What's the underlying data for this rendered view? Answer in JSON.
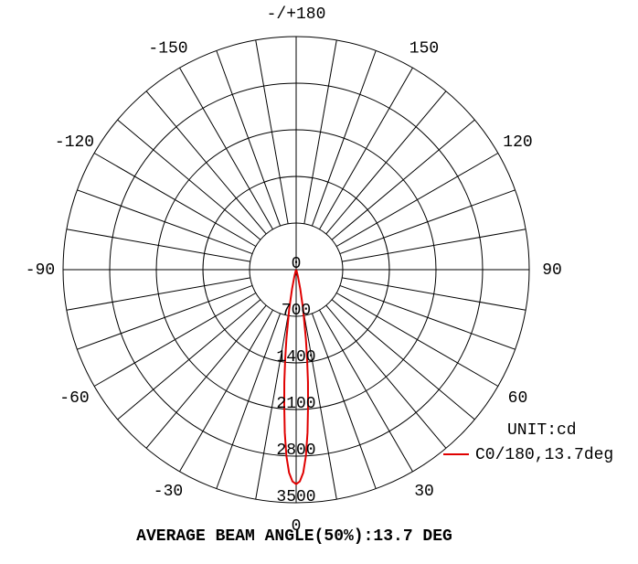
{
  "chart_data": {
    "type": "polar",
    "unit": "UNIT:cd",
    "footer": "AVERAGE BEAM ANGLE(50%):13.7 DEG",
    "rlim": [
      0,
      3500
    ],
    "rticks": [
      0,
      700,
      1400,
      2100,
      2800,
      3500
    ],
    "angle_ticks": [
      0,
      30,
      60,
      90,
      120,
      150,
      {
        "value": 180,
        "label": "-/+180"
      },
      -150,
      -120,
      -90,
      -60,
      -30
    ],
    "angle_step": 10,
    "series": [
      {
        "name": "C0/180,13.7deg",
        "color": "#e00000",
        "angles": [
          -30,
          -20,
          -15,
          -12,
          -10,
          -8,
          -7,
          -6,
          -5,
          -4,
          -3,
          -2,
          -1,
          0,
          1,
          2,
          3,
          4,
          5,
          6,
          7,
          8,
          10,
          12,
          15,
          20,
          30
        ],
        "values": [
          0,
          20,
          100,
          300,
          600,
          1050,
          1350,
          1700,
          2050,
          2450,
          2800,
          3050,
          3180,
          3220,
          3180,
          3050,
          2800,
          2450,
          2050,
          1700,
          1350,
          1050,
          600,
          300,
          100,
          20,
          0
        ]
      }
    ]
  }
}
